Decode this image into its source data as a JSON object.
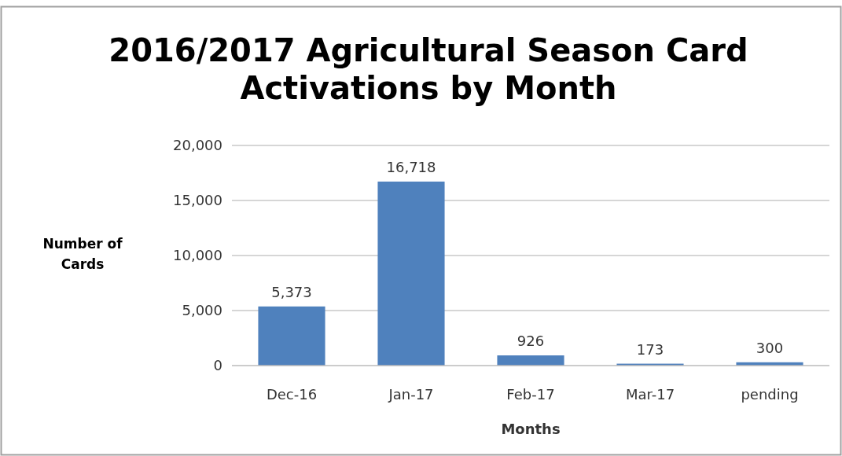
{
  "chart_data": {
    "type": "bar",
    "title": "2016/2017 Agricultural Season Card Activations by Month",
    "xlabel": "Months",
    "ylabel": "Number of Cards",
    "categories": [
      "Dec-16",
      "Jan-17",
      "Feb-17",
      "Mar-17",
      "pending"
    ],
    "values": [
      5373,
      16718,
      926,
      173,
      300
    ],
    "value_labels": [
      "5,373",
      "16,718",
      "926",
      "173",
      "300"
    ],
    "color": "#4f81bd",
    "ylim": [
      0,
      20000
    ],
    "yticks": [
      {
        "value": 0,
        "label": "0"
      },
      {
        "value": 5000,
        "label": "5,000"
      },
      {
        "value": 10000,
        "label": "10,000"
      },
      {
        "value": 15000,
        "label": "15,000"
      },
      {
        "value": 20000,
        "label": "20,000"
      }
    ],
    "grid": "y"
  }
}
